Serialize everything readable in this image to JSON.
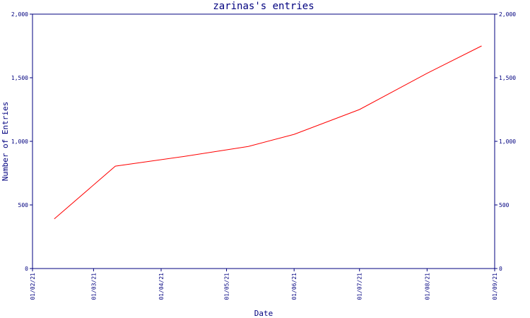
{
  "chart_data": {
    "type": "line",
    "title": "zarinas's entries",
    "xlabel": "Date",
    "ylabel": "Number of Entries",
    "x_tick_labels": [
      "01/02/21",
      "01/03/21",
      "01/04/21",
      "01/05/21",
      "01/06/21",
      "01/07/21",
      "01/08/21",
      "01/09/21"
    ],
    "y_tick_labels": [
      "0",
      "500",
      "1,000",
      "1,500",
      "2,000"
    ],
    "ylim": [
      0,
      2000
    ],
    "xlim": [
      "2021-02-01",
      "2021-09-01"
    ],
    "grid": false,
    "legend": "none",
    "colors": {
      "axis": "#00007f",
      "series": "#ff0000"
    },
    "series": [
      {
        "x": [
          "2021-02-11",
          "2021-03-11",
          "2021-04-11",
          "2021-05-11",
          "2021-06-01",
          "2021-07-01",
          "2021-08-01",
          "2021-08-26"
        ],
        "y": [
          390,
          805,
          880,
          960,
          1055,
          1250,
          1535,
          1750
        ]
      }
    ]
  }
}
